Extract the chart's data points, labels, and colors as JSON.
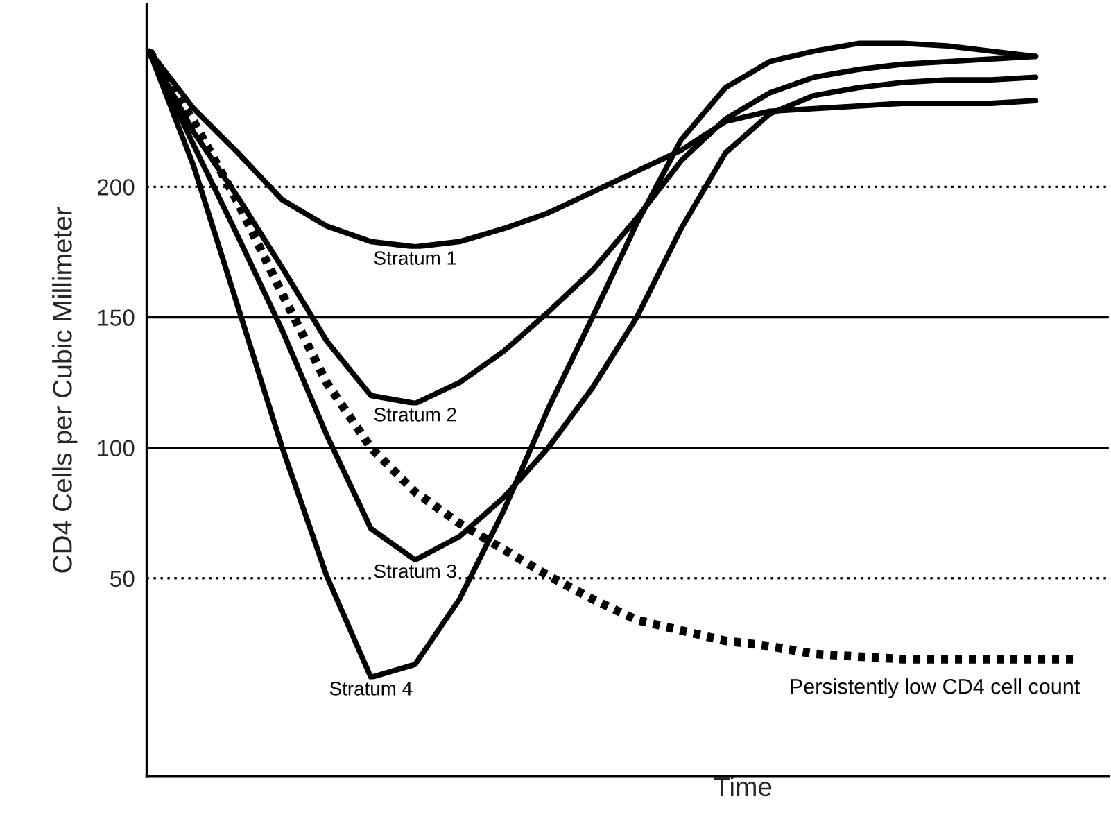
{
  "chart_data": {
    "type": "line",
    "xlabel": "Time",
    "ylabel": "CD4 Cells per Cubic Millimeter",
    "categories": [
      null,
      null,
      null,
      null,
      null,
      null,
      null,
      null,
      null,
      null,
      null,
      null,
      null,
      null,
      null,
      null,
      null,
      null,
      null,
      null,
      null,
      null
    ],
    "ylim": [
      -26,
      270
    ],
    "yticks": [
      50,
      100,
      150,
      200
    ],
    "grid": false,
    "legend": false,
    "marker": "none",
    "ref_lines": [
      {
        "axis": "y",
        "value": 50,
        "line_style": "dotted",
        "color": "#000000"
      },
      {
        "axis": "y",
        "value": 100,
        "line_style": "solid",
        "color": "#000000"
      },
      {
        "axis": "y",
        "value": 150,
        "line_style": "solid",
        "color": "#000000"
      },
      {
        "axis": "y",
        "value": 200,
        "line_style": "dotted",
        "color": "#000000"
      }
    ],
    "series": [
      {
        "name": "Stratum 1",
        "color": "#000000",
        "line_style": "solid",
        "values": [
          252,
          230,
          213,
          195,
          185,
          179,
          177,
          179,
          184,
          190,
          198,
          206,
          214,
          225,
          229,
          230,
          231,
          232,
          232,
          232,
          233,
          null
        ]
      },
      {
        "name": "Stratum 2",
        "color": "#000000",
        "line_style": "solid",
        "values": [
          252,
          221,
          196,
          169,
          141,
          120,
          117,
          125,
          137,
          152,
          168,
          188,
          210,
          226,
          236,
          242,
          245,
          247,
          248,
          249,
          250,
          null
        ]
      },
      {
        "name": "Stratum 3",
        "color": "#000000",
        "line_style": "solid",
        "values": [
          252,
          216,
          181,
          145,
          105,
          69,
          57,
          66,
          81,
          100,
          123,
          150,
          184,
          213,
          228,
          235,
          238,
          240,
          241,
          241,
          242,
          null
        ]
      },
      {
        "name": "Stratum 4",
        "color": "#000000",
        "line_style": "solid",
        "values": [
          252,
          208,
          154,
          100,
          51,
          12,
          17,
          42,
          76,
          115,
          150,
          186,
          218,
          238,
          248,
          252,
          255,
          255,
          254,
          252,
          250,
          null
        ]
      },
      {
        "name": "Persistently low CD4 cell count",
        "color": "#000000",
        "line_style": "dotted",
        "values": [
          252,
          225,
          194,
          159,
          125,
          100,
          83,
          71,
          61,
          51,
          42,
          34,
          30,
          26,
          24,
          21,
          20,
          19,
          19,
          19,
          19,
          19
        ]
      }
    ]
  }
}
